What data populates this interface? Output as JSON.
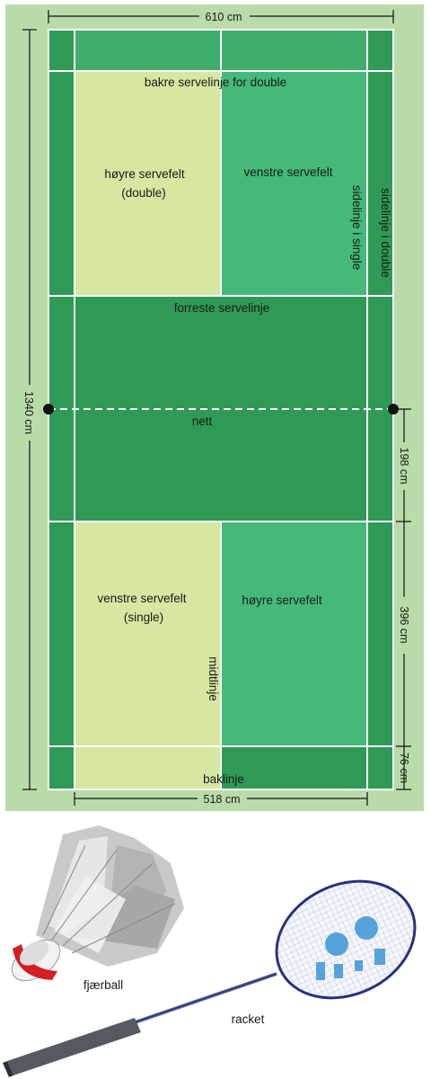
{
  "labels": {
    "width_total": "610 cm",
    "long_service_double": "bakre servelinje for double",
    "right_service_double_1": "høyre servefelt",
    "right_service_double_2": "(double)",
    "left_service_top": "venstre servefelt",
    "sideline_single": "sidelinje i single",
    "sideline_double": "sidelinje i double",
    "short_service": "forreste servelinje",
    "net": "nett",
    "length_total": "1340 cm",
    "dim_198": "198 cm",
    "dim_396": "396 cm",
    "dim_76": "76 cm",
    "left_service_single_1": "venstre servefelt",
    "left_service_single_2": "(single)",
    "right_service_bottom": "høyre servefelt",
    "centre_line": "midtlinje",
    "back_line": "baklinje",
    "width_single": "518 cm",
    "shuttlecock": "fjærball",
    "racket": "racket"
  },
  "colors": {
    "background": "#b9dba9",
    "court_dark": "#2f9a55",
    "court_mid": "#44b979",
    "highlight": "#d5e7a0",
    "lines": "#ffffff"
  }
}
